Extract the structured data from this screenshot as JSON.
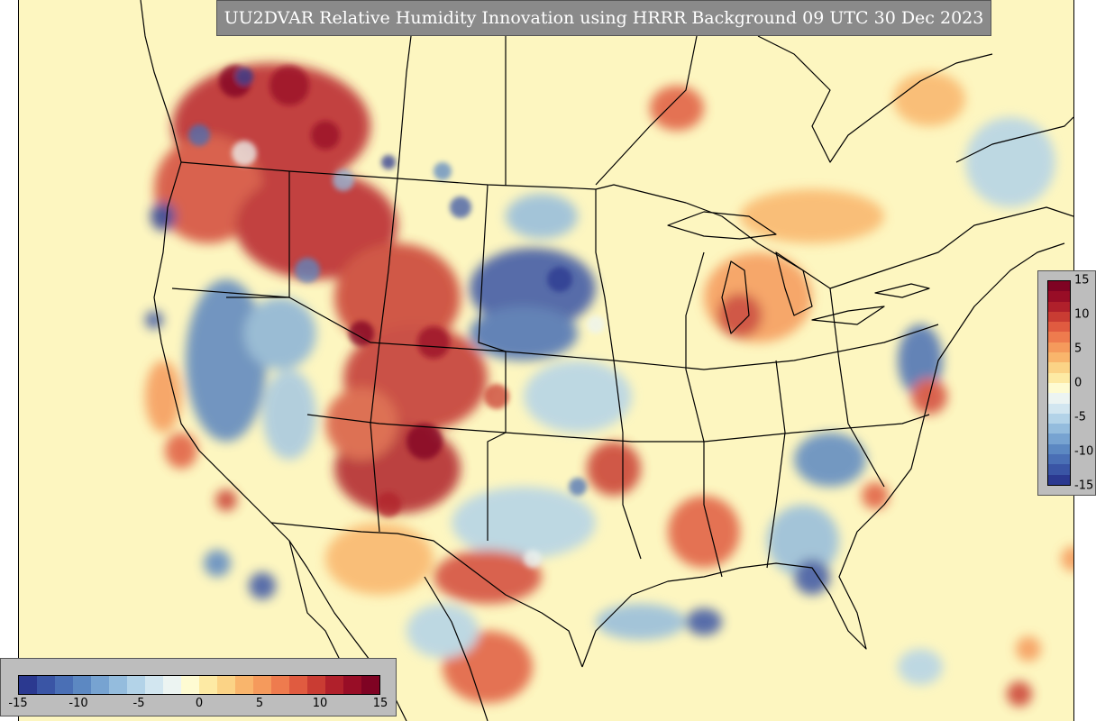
{
  "title": "UU2DVAR Relative Humidity Innovation using HRRR Background 09 UTC 30 Dec 2023",
  "colorbar": {
    "min": -15,
    "max": 15,
    "step_count": 30,
    "colors": [
      "#2b3990",
      "#3a55a5",
      "#4a6fb5",
      "#5c88c2",
      "#77a3d1",
      "#94bcdd",
      "#b3d3e8",
      "#d2e6f0",
      "#ecf4f2",
      "#fefbd2",
      "#fdeaa4",
      "#fbd386",
      "#f9b56c",
      "#f59a5c",
      "#ee7b4e",
      "#e05b40",
      "#c93c33",
      "#b0202b",
      "#980d26",
      "#7f0323"
    ],
    "vertical_ticks": [
      "15",
      "10",
      "5",
      "0",
      "-5",
      "-10",
      "-15"
    ],
    "horizontal_ticks": [
      "-15",
      "-10",
      "-5",
      "0",
      "5",
      "10",
      "15"
    ]
  },
  "map": {
    "background_color": "#fdf6c0",
    "border_color": "#000000"
  }
}
